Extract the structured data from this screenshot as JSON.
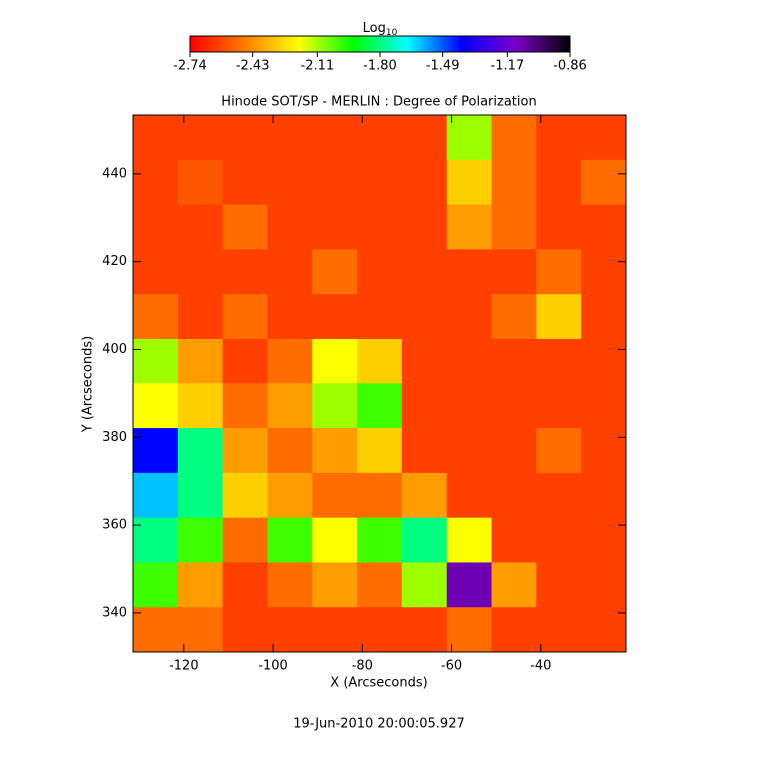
{
  "chart_data": {
    "type": "heatmap",
    "title": "Hinode SOT/SP - MERLIN : Degree of Polarization",
    "x_label": "X (Arcseconds)",
    "y_label": "Y (Arcseconds)",
    "footer": "19-Jun-2010 20:00:05.927",
    "colorbar_label": {
      "base": "Log",
      "sub": "10"
    },
    "colorbar_lim": [
      -2.74,
      -0.86
    ],
    "colorbar_ticks": [
      -2.74,
      -2.43,
      -2.11,
      {
        "value": -1.8,
        "label": "-1.80"
      },
      -1.49,
      -1.17,
      -0.86
    ],
    "colormap": [
      "#ff0000",
      "#ff7a00",
      "#ffff00",
      "#00ff00",
      "#00ffff",
      "#0000ff",
      "#7a00c8",
      "#000000"
    ],
    "xlim": [
      -131.4,
      -20.9
    ],
    "ylim": [
      331.1,
      453.4
    ],
    "xticks": [
      -120,
      -100,
      -80,
      -60,
      -40
    ],
    "yticks": [
      340,
      360,
      380,
      400,
      420,
      440
    ],
    "x": [
      -126.38,
      -116.33,
      -106.29,
      -96.24,
      -86.2,
      -76.15,
      -66.11,
      -56.06,
      -46.02,
      -35.97,
      -25.93
    ],
    "y": [
      448.3,
      438.1,
      427.9,
      417.7,
      407.5,
      397.3,
      387.2,
      377.0,
      366.8,
      356.6,
      346.4,
      336.2
    ],
    "z": [
      [
        -2.6,
        -2.6,
        -2.6,
        -2.6,
        -2.6,
        -2.6,
        -2.6,
        -2.1,
        -2.5,
        -2.6,
        -2.6
      ],
      [
        -2.6,
        -2.55,
        -2.6,
        -2.6,
        -2.6,
        -2.6,
        -2.6,
        -2.3,
        -2.5,
        -2.6,
        -2.5
      ],
      [
        -2.6,
        -2.6,
        -2.5,
        -2.6,
        -2.6,
        -2.6,
        -2.6,
        -2.4,
        -2.5,
        -2.6,
        -2.6
      ],
      [
        -2.6,
        -2.6,
        -2.6,
        -2.6,
        -2.5,
        -2.6,
        -2.6,
        -2.6,
        -2.6,
        -2.5,
        -2.6
      ],
      [
        -2.5,
        -2.6,
        -2.5,
        -2.6,
        -2.6,
        -2.6,
        -2.6,
        -2.6,
        -2.5,
        -2.3,
        -2.6
      ],
      [
        -2.1,
        -2.4,
        -2.6,
        -2.5,
        -2.2,
        -2.3,
        -2.6,
        -2.6,
        -2.6,
        -2.6,
        -2.6
      ],
      [
        -2.2,
        -2.3,
        -2.5,
        -2.4,
        -2.1,
        -2.0,
        -2.6,
        -2.6,
        -2.6,
        -2.6,
        -2.6
      ],
      [
        -1.4,
        -1.8,
        -2.4,
        -2.5,
        -2.4,
        -2.3,
        -2.6,
        -2.6,
        -2.6,
        -2.5,
        -2.6
      ],
      [
        -1.6,
        -1.8,
        -2.3,
        -2.4,
        -2.5,
        -2.5,
        -2.4,
        -2.6,
        -2.6,
        -2.6,
        -2.6
      ],
      [
        -1.8,
        -2.0,
        -2.5,
        -2.0,
        -2.2,
        -2.0,
        -1.8,
        -2.2,
        -2.6,
        -2.6,
        -2.6
      ],
      [
        -2.0,
        -2.4,
        -2.6,
        -2.5,
        -2.4,
        -2.5,
        -2.1,
        -1.1,
        -2.4,
        -2.6,
        -2.6
      ],
      [
        -2.5,
        -2.5,
        -2.6,
        -2.6,
        -2.6,
        -2.6,
        -2.6,
        -2.5,
        -2.6,
        -2.6,
        -2.6
      ]
    ]
  }
}
